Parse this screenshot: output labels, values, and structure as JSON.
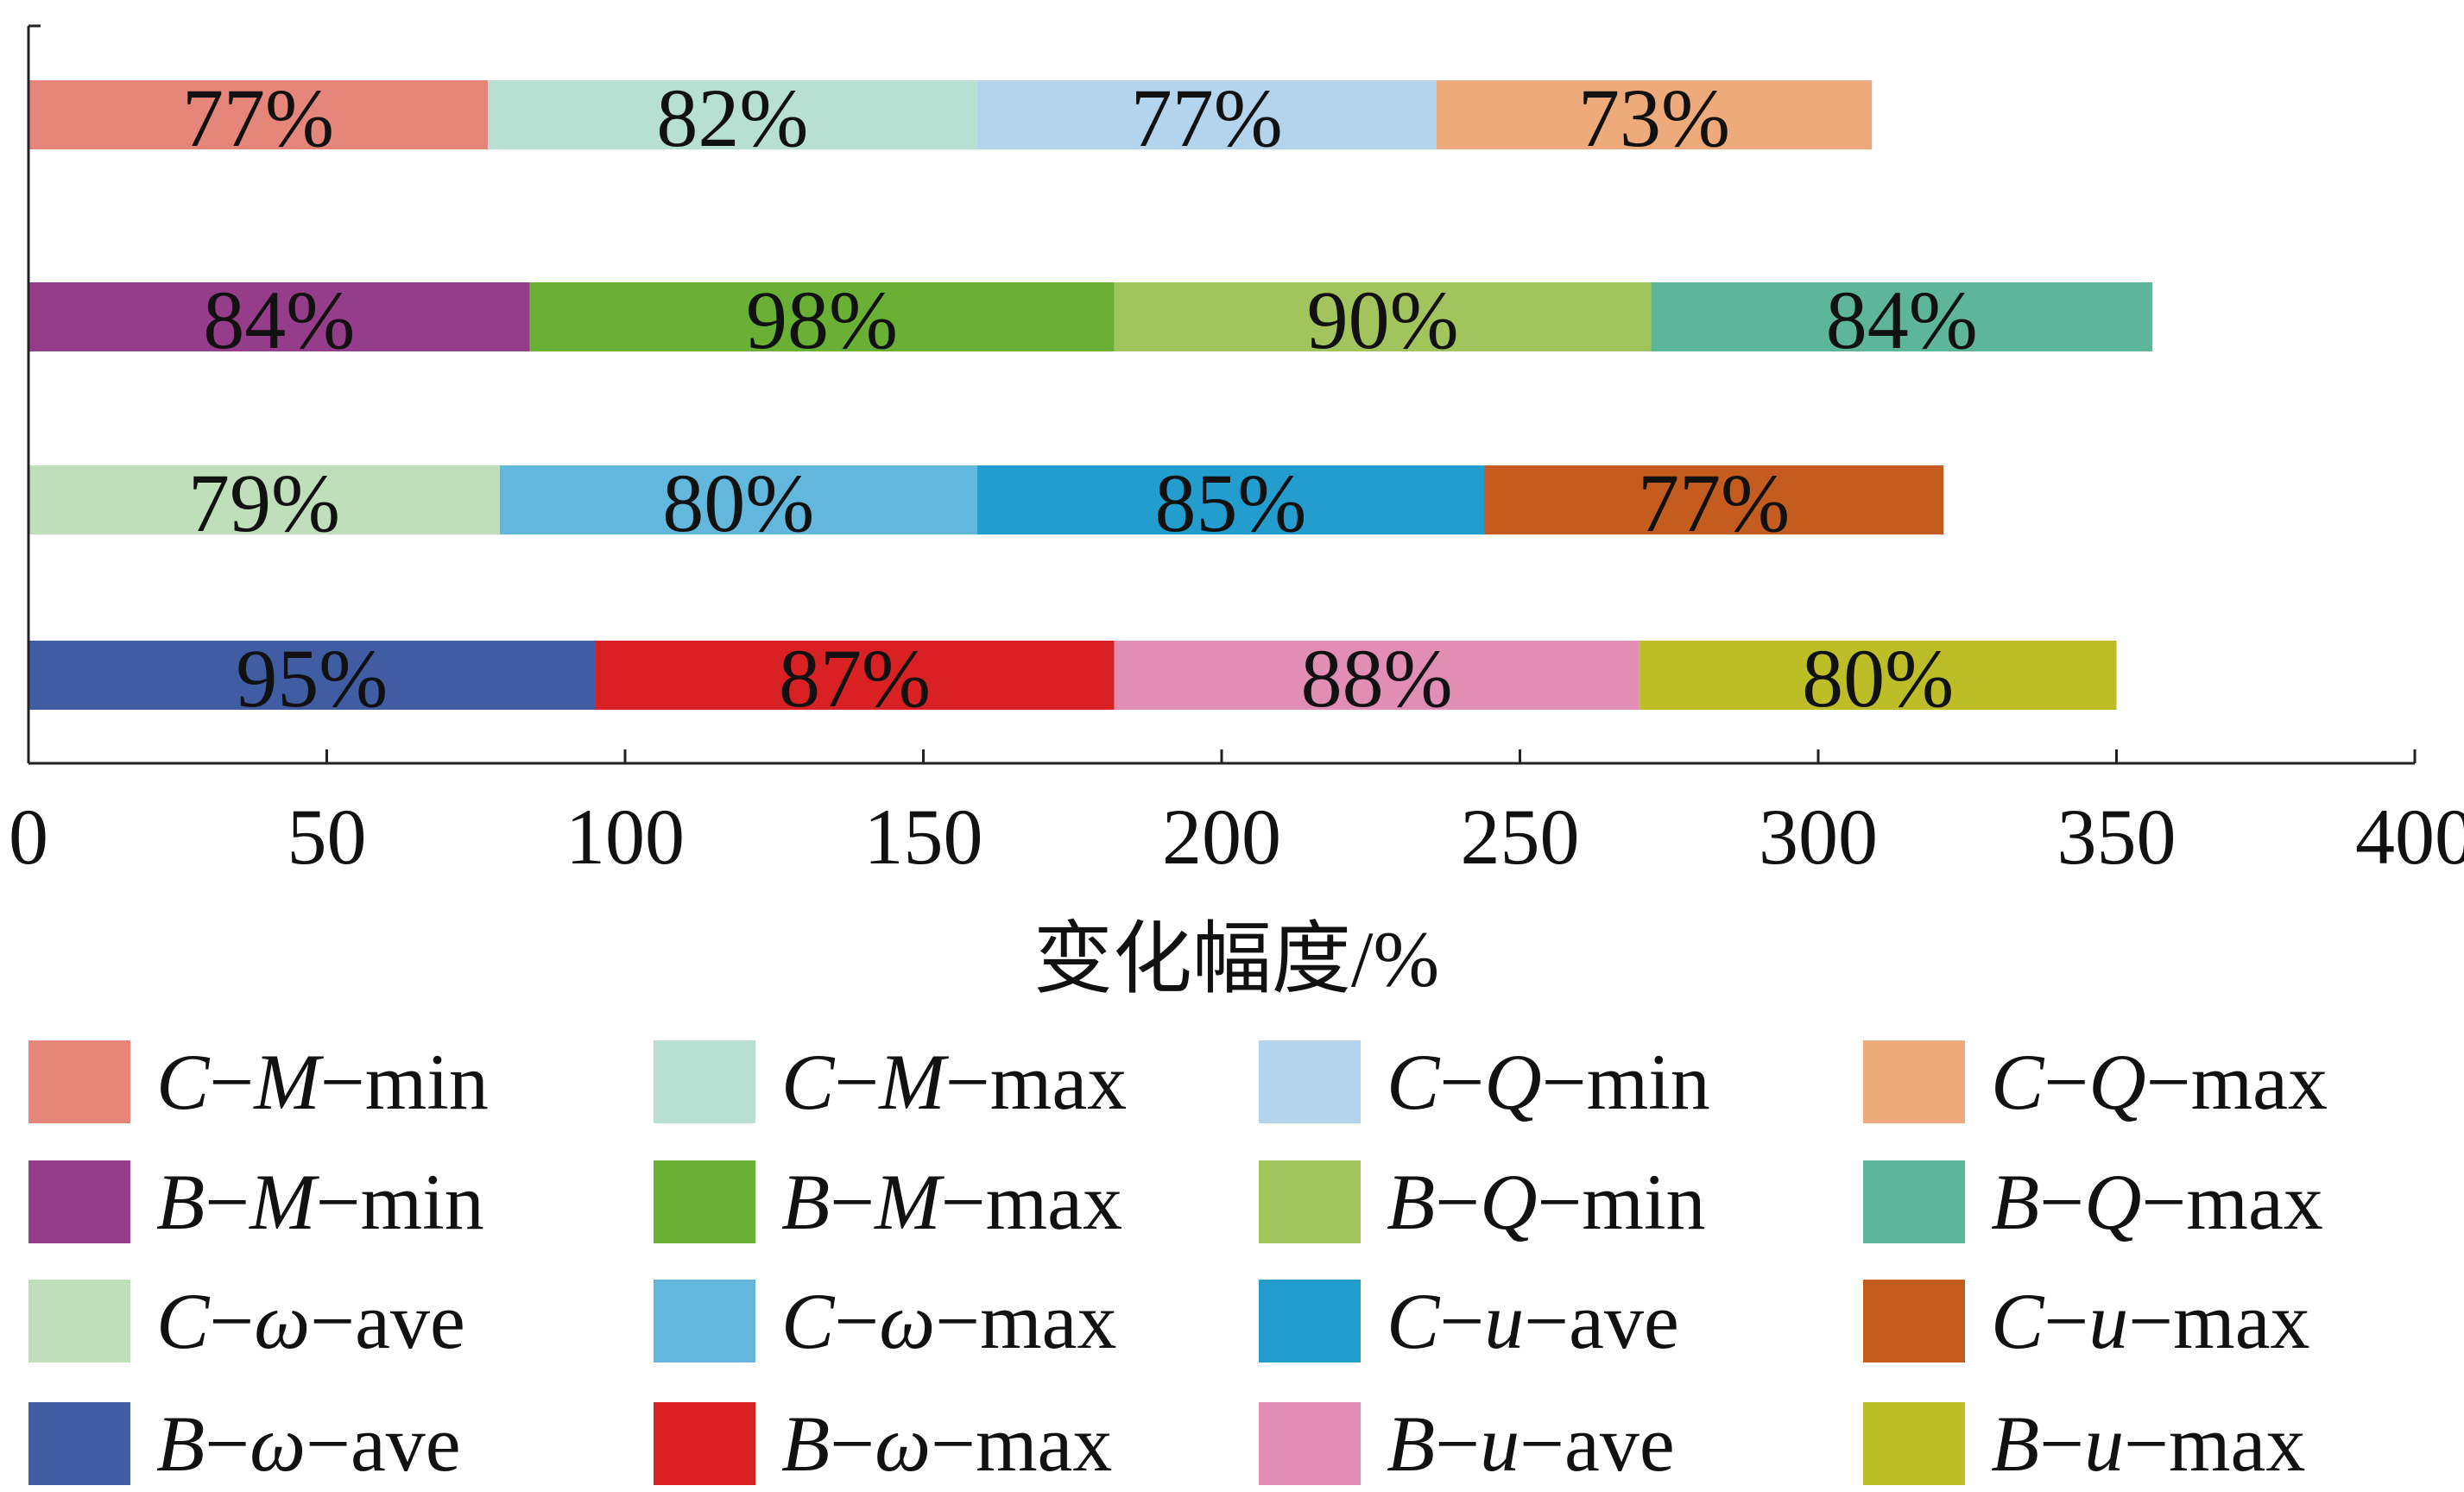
{
  "chart_data": {
    "type": "bar",
    "orientation": "horizontal",
    "stacked": true,
    "xlabel": "变化幅度/%",
    "xlim": [
      0,
      400
    ],
    "xticks": [
      "0",
      "50",
      "100",
      "150",
      "200",
      "250",
      "300",
      "350",
      "400"
    ],
    "grid": false,
    "legend_position": "bottom",
    "rows": [
      {
        "segments": [
          {
            "series": "C−M−min",
            "value": 77,
            "label": "77%",
            "color": "#e6867a"
          },
          {
            "series": "C−M−max",
            "value": 82,
            "label": "82%",
            "color": "#b7dfd2"
          },
          {
            "series": "C−Q−min",
            "value": 77,
            "label": "77%",
            "color": "#b4d4ee"
          },
          {
            "series": "C−Q−max",
            "value": 73,
            "label": "73%",
            "color": "#eeaa7b"
          }
        ]
      },
      {
        "segments": [
          {
            "series": "B−M−min",
            "value": 84,
            "label": "84%",
            "color": "#953d8b"
          },
          {
            "series": "B−M−max",
            "value": 98,
            "label": "98%",
            "color": "#69b034"
          },
          {
            "series": "B−Q−min",
            "value": 90,
            "label": "90%",
            "color": "#a2c45c"
          },
          {
            "series": "B−Q−max",
            "value": 84,
            "label": "84%",
            "color": "#5db69a"
          }
        ]
      },
      {
        "segments": [
          {
            "series": "C−ω−ave",
            "value": 79,
            "label": "79%",
            "color": "#bfdfbb"
          },
          {
            "series": "C−ω−max",
            "value": 80,
            "label": "80%",
            "color": "#62b7dc"
          },
          {
            "series": "C−u−ave",
            "value": 85,
            "label": "85%",
            "color": "#239dcd"
          },
          {
            "series": "C−u−max",
            "value": 77,
            "label": "77%",
            "color": "#c55c1f"
          }
        ]
      },
      {
        "segments": [
          {
            "series": "B−ω−ave",
            "value": 95,
            "label": "95%",
            "color": "#405da4"
          },
          {
            "series": "B−ω−max",
            "value": 87,
            "label": "87%",
            "color": "#d92123"
          },
          {
            "series": "B−u−ave",
            "value": 88,
            "label": "88%",
            "color": "#e18db4"
          },
          {
            "series": "B−u−max",
            "value": 80,
            "label": "80%",
            "color": "#bdbd28"
          }
        ]
      }
    ]
  },
  "legend": [
    {
      "key": "C−M−min",
      "color": "#e6867a",
      "parts": [
        {
          "t": "C",
          "it": true
        },
        {
          "t": "−"
        },
        {
          "t": "M",
          "it": true
        },
        {
          "t": "−min"
        }
      ]
    },
    {
      "key": "C−M−max",
      "color": "#b7dfd2",
      "parts": [
        {
          "t": "C",
          "it": true
        },
        {
          "t": "−"
        },
        {
          "t": "M",
          "it": true
        },
        {
          "t": "−max"
        }
      ]
    },
    {
      "key": "C−Q−min",
      "color": "#b4d4ee",
      "parts": [
        {
          "t": "C",
          "it": true
        },
        {
          "t": "−"
        },
        {
          "t": "Q",
          "it": true
        },
        {
          "t": "−min"
        }
      ]
    },
    {
      "key": "C−Q−max",
      "color": "#eeaa7b",
      "parts": [
        {
          "t": "C",
          "it": true
        },
        {
          "t": "−"
        },
        {
          "t": "Q",
          "it": true
        },
        {
          "t": "−max"
        }
      ]
    },
    {
      "key": "B−M−min",
      "color": "#953d8b",
      "parts": [
        {
          "t": "B",
          "it": true
        },
        {
          "t": "−"
        },
        {
          "t": "M",
          "it": true
        },
        {
          "t": "−min"
        }
      ]
    },
    {
      "key": "B−M−max",
      "color": "#69b034",
      "parts": [
        {
          "t": "B",
          "it": true
        },
        {
          "t": "−"
        },
        {
          "t": "M",
          "it": true
        },
        {
          "t": "−max"
        }
      ]
    },
    {
      "key": "B−Q−min",
      "color": "#a2c45c",
      "parts": [
        {
          "t": "B",
          "it": true
        },
        {
          "t": "−"
        },
        {
          "t": "Q",
          "it": true
        },
        {
          "t": "−min"
        }
      ]
    },
    {
      "key": "B−Q−max",
      "color": "#5db69a",
      "parts": [
        {
          "t": "B",
          "it": true
        },
        {
          "t": "−"
        },
        {
          "t": "Q",
          "it": true
        },
        {
          "t": "−max"
        }
      ]
    },
    {
      "key": "C−ω−ave",
      "color": "#bfdfbb",
      "parts": [
        {
          "t": "C",
          "it": true
        },
        {
          "t": "−"
        },
        {
          "t": "ω",
          "it": true
        },
        {
          "t": "−ave"
        }
      ]
    },
    {
      "key": "C−ω−max",
      "color": "#62b7dc",
      "parts": [
        {
          "t": "C",
          "it": true
        },
        {
          "t": "−"
        },
        {
          "t": "ω",
          "it": true
        },
        {
          "t": "−max"
        }
      ]
    },
    {
      "key": "C−u−ave",
      "color": "#239dcd",
      "parts": [
        {
          "t": "C",
          "it": true
        },
        {
          "t": "−"
        },
        {
          "t": "u",
          "it": true
        },
        {
          "t": "−ave"
        }
      ]
    },
    {
      "key": "C−u−max",
      "color": "#c55c1f",
      "parts": [
        {
          "t": "C",
          "it": true
        },
        {
          "t": "−"
        },
        {
          "t": "u",
          "it": true
        },
        {
          "t": "−max"
        }
      ]
    },
    {
      "key": "B−ω−ave",
      "color": "#405da4",
      "parts": [
        {
          "t": "B",
          "it": true
        },
        {
          "t": "−"
        },
        {
          "t": "ω",
          "it": true
        },
        {
          "t": "−ave"
        }
      ]
    },
    {
      "key": "B−ω−max",
      "color": "#d92123",
      "parts": [
        {
          "t": "B",
          "it": true
        },
        {
          "t": "−"
        },
        {
          "t": "ω",
          "it": true
        },
        {
          "t": "−max"
        }
      ]
    },
    {
      "key": "B−u−ave",
      "color": "#e18db4",
      "parts": [
        {
          "t": "B",
          "it": true
        },
        {
          "t": "−"
        },
        {
          "t": "u",
          "it": true
        },
        {
          "t": "−ave"
        }
      ]
    },
    {
      "key": "B−u−max",
      "color": "#bdbd28",
      "parts": [
        {
          "t": "B",
          "it": true
        },
        {
          "t": "−"
        },
        {
          "t": "u",
          "it": true
        },
        {
          "t": "−max"
        }
      ]
    }
  ]
}
